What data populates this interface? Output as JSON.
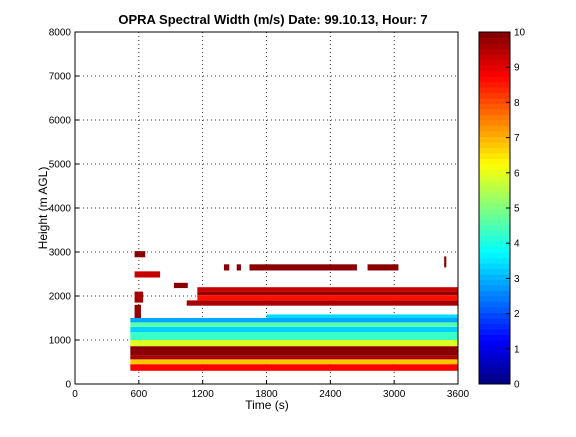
{
  "chart_data": {
    "type": "heatmap",
    "title": "OPRA Spectral Width (m/s)  Date: 99.10.13, Hour: 7",
    "xlabel": "Time (s)",
    "ylabel": "Height (m AGL)",
    "xlim": [
      0,
      3600
    ],
    "ylim": [
      0,
      8000
    ],
    "xticks": [
      0,
      600,
      1200,
      1800,
      2400,
      3000,
      3600
    ],
    "yticks": [
      0,
      1000,
      2000,
      3000,
      4000,
      5000,
      6000,
      7000,
      8000
    ],
    "grid": true,
    "colorbar": {
      "range": [
        0,
        10
      ],
      "ticks": [
        0,
        1,
        2,
        3,
        4,
        5,
        6,
        7,
        8,
        9,
        10
      ],
      "colormap": "jet",
      "placement": "right"
    },
    "layers": [
      {
        "height_bottom": 300,
        "height_top": 450,
        "time_start": 520,
        "time_end": 3600,
        "value": 8.8
      },
      {
        "height_bottom": 450,
        "height_top": 560,
        "time_start": 520,
        "time_end": 3600,
        "value": 6.8
      },
      {
        "height_bottom": 560,
        "height_top": 650,
        "time_start": 520,
        "time_end": 3600,
        "value": 9.6
      },
      {
        "height_bottom": 650,
        "height_top": 860,
        "time_start": 520,
        "time_end": 3600,
        "value": 9.9
      },
      {
        "height_bottom": 860,
        "height_top": 1000,
        "time_start": 520,
        "time_end": 3600,
        "value": 5.9
      },
      {
        "height_bottom": 1000,
        "height_top": 1180,
        "time_start": 520,
        "time_end": 3600,
        "value": 4.3
      },
      {
        "height_bottom": 1180,
        "height_top": 1300,
        "time_start": 520,
        "time_end": 3600,
        "value": 3.3
      },
      {
        "height_bottom": 1300,
        "height_top": 1400,
        "time_start": 520,
        "time_end": 3600,
        "value": 4.6
      },
      {
        "height_bottom": 1400,
        "height_top": 1500,
        "time_start": 520,
        "time_end": 3600,
        "value": 2.9
      },
      {
        "height_bottom": 1500,
        "height_top": 1580,
        "time_start": 1800,
        "time_end": 3600,
        "value": 3.4
      },
      {
        "height_bottom": 1780,
        "height_top": 1900,
        "time_start": 1050,
        "time_end": 3600,
        "value": 9.6
      },
      {
        "height_bottom": 1900,
        "height_top": 2020,
        "time_start": 1150,
        "time_end": 3600,
        "value": 8.6
      },
      {
        "height_bottom": 2020,
        "height_top": 2100,
        "time_start": 1150,
        "time_end": 3600,
        "value": 9.8
      },
      {
        "height_bottom": 2100,
        "height_top": 2200,
        "time_start": 1150,
        "time_end": 3600,
        "value": 9.3
      },
      {
        "height_bottom": 2580,
        "height_top": 2720,
        "time_start": 1640,
        "time_end": 2650,
        "value": 9.9
      },
      {
        "height_bottom": 2580,
        "height_top": 2720,
        "time_start": 2750,
        "time_end": 3040,
        "value": 9.9
      },
      {
        "height_bottom": 2420,
        "height_top": 2560,
        "time_start": 560,
        "time_end": 800,
        "value": 9.3
      },
      {
        "height_bottom": 2880,
        "height_top": 3020,
        "time_start": 560,
        "time_end": 660,
        "value": 9.9
      },
      {
        "height_bottom": 1850,
        "height_top": 2100,
        "time_start": 560,
        "time_end": 640,
        "value": 9.6
      },
      {
        "height_bottom": 1500,
        "height_top": 1800,
        "time_start": 560,
        "time_end": 620,
        "value": 9.8
      },
      {
        "height_bottom": 2180,
        "height_top": 2300,
        "time_start": 930,
        "time_end": 1060,
        "value": 9.9
      },
      {
        "height_bottom": 2580,
        "height_top": 2720,
        "time_start": 1400,
        "time_end": 1450,
        "value": 9.9
      },
      {
        "height_bottom": 2580,
        "height_top": 2720,
        "time_start": 1520,
        "time_end": 1560,
        "value": 9.9
      },
      {
        "height_bottom": 2650,
        "height_top": 2900,
        "time_start": 3470,
        "time_end": 3490,
        "value": 9.9
      }
    ]
  }
}
